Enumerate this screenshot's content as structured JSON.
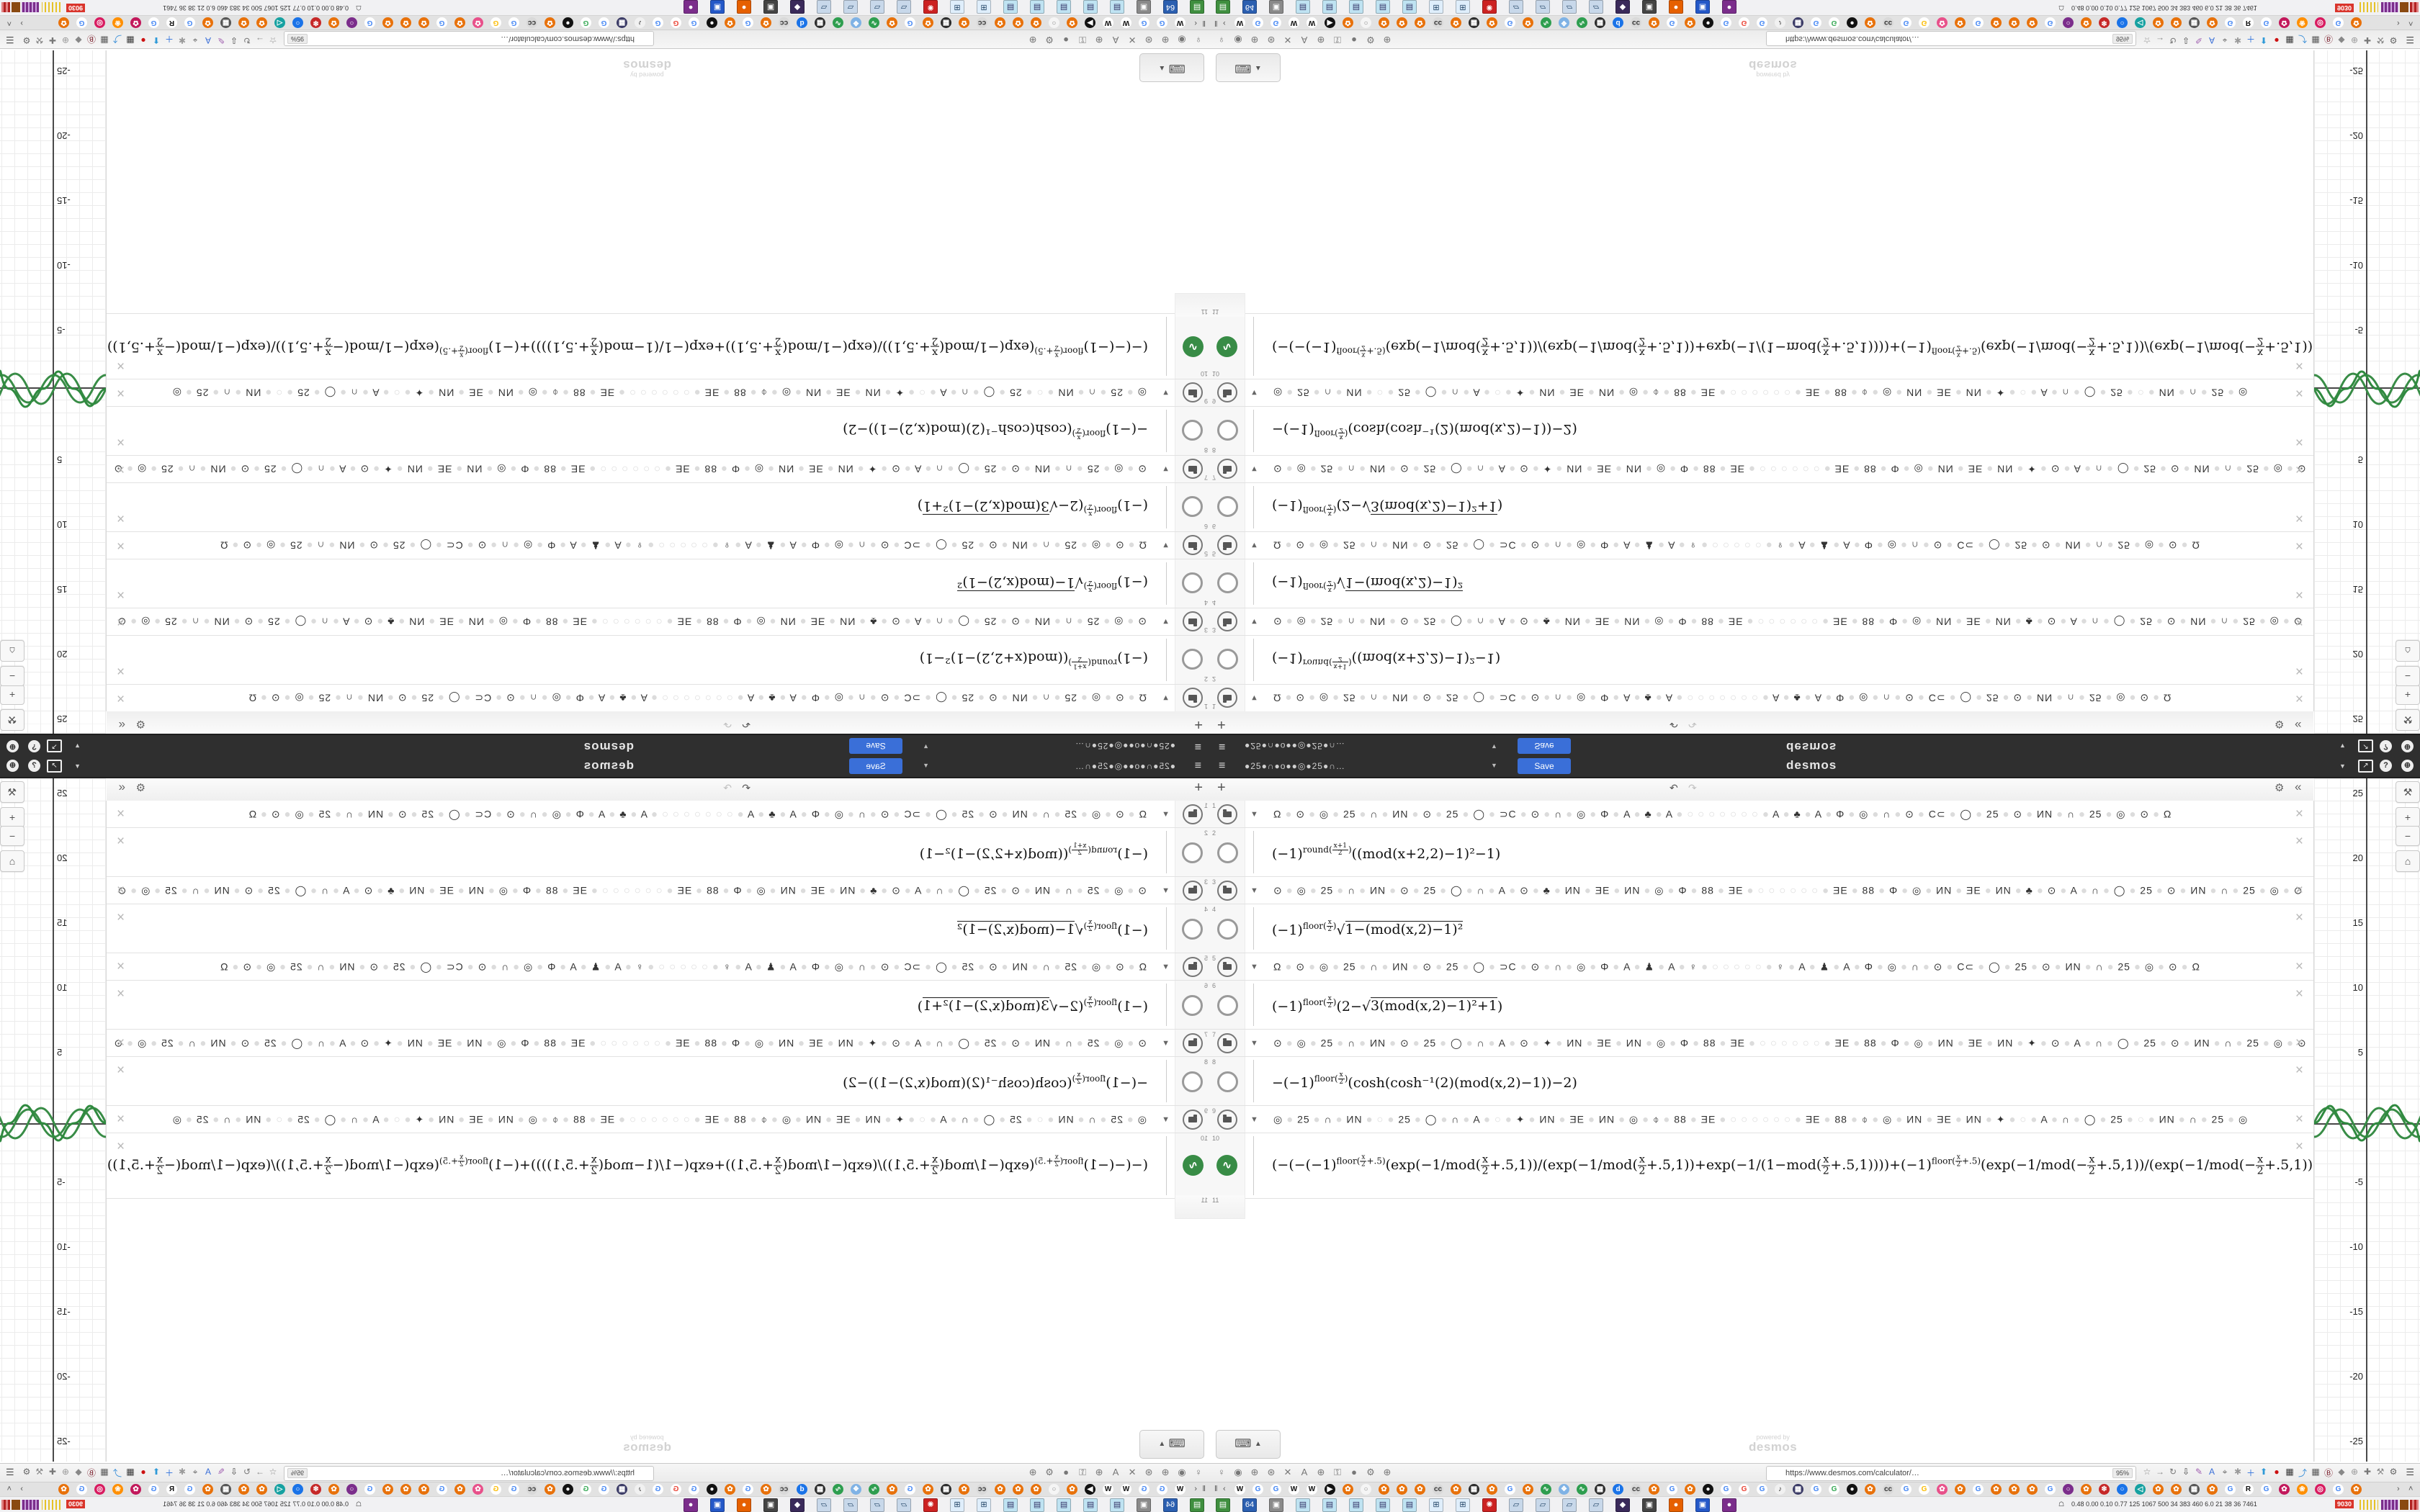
{
  "colors": {
    "accent_blue": "#3a6fd8",
    "curve_green": "#388c46",
    "alert_red": "#d9342b",
    "header_dark": "#2f2f2f"
  },
  "header": {
    "menu_icon": "≡",
    "title": "●25●∩●o●●◎●25●∩…",
    "title_caret": "▼",
    "save_label": "Save",
    "wordmark": "desmos",
    "account_caret": "▼",
    "share_icon": "↗",
    "help_icon": "?",
    "globe_icon": "⊕"
  },
  "expressions_toolbar": {
    "add": "+",
    "undo": "↶",
    "redo": "↷",
    "gear": "⚙",
    "collapse": "«"
  },
  "expressions": {
    "next_index": "11",
    "rows": [
      {
        "type": "folder",
        "index": "1",
        "arrow": "▼",
        "emoji": "Ω ● ⊙ ● ◎ ● 25 ● ∩ ● ИN ● ⊙ ● 25 ● ◯ ● ⊃C ● ⊙ ● ∩ ● ◎ ● Φ ● A ● ♣ ● A ● ○ ○ ○ ○ ○ ○ ○ ● A ● ♣ ● A ● Φ ● ◎ ● ∩ ● ⊙ ● C⊂ ● ◯ ● 25 ● ⊙ ● ИN ● ∩ ● 25 ● ◎ ● ⊙ ● Ω"
      },
      {
        "type": "math",
        "index": "2",
        "pre": "",
        "base": "(−1)",
        "sup": "round({x+1|2})",
        "rest": "((mod(x+2,2)−1)²−1)"
      },
      {
        "type": "folder",
        "index": "3",
        "arrow": "▼",
        "emoji": "⊙ ● ◎ ● 25 ● ∩ ● ИN ● ⊙ ● 25 ● ◯ ● ∩ ● A ● ⊙ ● ♣ ● ИN ● ƎE ● ИN ● ◎ ● Φ ● 88 ● ƎE ● ○ ○ ○ ○ ○ ○ ● ƎE ● 88 ● Φ ● ◎ ● ИN ● ƎE ● ИN ● ♣ ● ⊙ ● A ● ∩ ● ◯ ● 25 ● ⊙ ● ИN ● ∩ ● 25 ● ◎ ● ⊙"
      },
      {
        "type": "math",
        "index": "4",
        "pre": "",
        "base": "(−1)",
        "sup": "floor({x|2})",
        "rest": "√{1−(mod(x,2)−1)²}"
      },
      {
        "type": "folder",
        "index": "5",
        "arrow": "▼",
        "emoji": "Ω ● ⊙ ● ◎ ● 25 ● ∩ ● ИN ● ⊙ ● 25 ● ◯ ● ⊃C ● ⊙ ● ∩ ● ◎ ● Φ ● A ● ♟ ● A ● ♀ ● ○ ○ ○ ○ ○ ● ♀ ● A ● ♟ ● A ● Φ ● ◎ ● ∩ ● ⊙ ● C⊂ ● ◯ ● 25 ● ⊙ ● ИN ● ∩ ● 25 ● ◎ ● ⊙ ● Ω"
      },
      {
        "type": "math",
        "index": "6",
        "pre": "",
        "base": "(−1)",
        "sup": "floor({x|2})",
        "rest": "(2−√{3(mod(x,2)−1)²+1})"
      },
      {
        "type": "folder",
        "index": "7",
        "arrow": "▼",
        "emoji": "⊙ ● ◎ ● 25 ● ∩ ● ИN ● ⊙ ● 25 ● ◯ ● ∩ ● A ● ⊙ ● ✦ ● ИN ● ƎE ● ИN ● ◎ ● Φ ● 88 ● ƎE ● ○ ○ ○ ○ ○ ○ ● ƎE ● 88 ● Φ ● ◎ ● ИN ● ƎE ● ИN ● ✦ ● ⊙ ● A ● ∩ ● ◯ ● 25 ● ⊙ ● ИN ● ∩ ● 25 ● ◎ ● ⊙"
      },
      {
        "type": "math",
        "index": "8",
        "pre": "−",
        "base": "(−1)",
        "sup": "floor({x|2})",
        "rest": "(cosh(cosh⁻¹(2)(mod(x,2)−1))−2)"
      },
      {
        "type": "folder",
        "index": "9",
        "arrow": "▼",
        "emoji": "◎ ● 25 ● ∩ ● ИN ● ○ ● 25 ● ◯ ● ∩ ● A ● ○ ● ✦ ● ИN ● ƎE ● ИN ● ◎ ● ⌽ ● 88 ● ƎE ● ○ ○ ○ ○ ○ ○ ● ƎE ● 88 ● ⌽ ● ◎ ● ИN ● ƎE ● ИN ● ✦ ● ○ ● A ● ∩ ● ◯ ● 25 ● ○ ● ИN ● ∩ ● 25 ● ◎"
      },
      {
        "type": "math",
        "index": "10",
        "green": true,
        "icon": "∿",
        "pre": "(−(−",
        "base": "(−1)",
        "sup": "floor({x|2}+.5)",
        "rest": "(exp(−1/mod({x|2}+.5,1))/(exp(−1/mod({x|2}+.5,1))+exp(−1/(1−mod({x|2}+.5,1))))+(−1)^{floor({x|2}+.5)}(exp(−1/mod(−{x|2}+.5,1))/(exp(−1/mod(−{x|2}+.5,1))+exp(−1/(1−mod(−{x|2}+.5,1))))))"
      }
    ]
  },
  "keyboard": {
    "icon": "⌨",
    "caret": "▲"
  },
  "watermark": {
    "line1": "powered by",
    "line2": "desmos"
  },
  "graph": {
    "y_labels": [
      {
        "t": "25",
        "y": 13
      },
      {
        "t": "20",
        "y": 103
      },
      {
        "t": "15",
        "y": 193
      },
      {
        "t": "10",
        "y": 283
      },
      {
        "t": "5",
        "y": 373
      },
      {
        "t": "-5",
        "y": 553
      },
      {
        "t": "-10",
        "y": 643
      },
      {
        "t": "-15",
        "y": 733
      },
      {
        "t": "-20",
        "y": 823
      },
      {
        "t": "-25",
        "y": 913
      }
    ],
    "controls": [
      {
        "t": "⚒",
        "y": 4,
        "h": 28
      },
      {
        "t": "+",
        "y": 40,
        "h": 26
      },
      {
        "t": "−",
        "y": 66,
        "h": 26
      },
      {
        "t": "⌂",
        "y": 100,
        "h": 28
      }
    ]
  },
  "chart_data": {
    "type": "line",
    "title": "",
    "xlabel": "x",
    "ylabel": "y",
    "x_visible_range": [
      -4,
      4.1
    ],
    "y_visible_range": [
      -26.6,
      26.1
    ],
    "grid": true,
    "legend_position": "none",
    "series": [
      {
        "name": "(-1)^round((x+1)/2)((mod(x+2,2)-1)^2-1)",
        "color": "#388c46",
        "description": "triangle-ish parabola wave, period 4, amplitude 1"
      },
      {
        "name": "(-1)^floor(x/2)sqrt(1-(mod(x,2)-1)^2)",
        "color": "#388c46",
        "description": "semicircle wave, period 4, amplitude 1"
      },
      {
        "name": "(-1)^floor(x/2)(2-sqrt(3(mod(x,2)-1)^2+1))",
        "color": "#388c46",
        "description": "hyperbola wave, period 4, amplitude 1"
      },
      {
        "name": "-(-1)^floor(x/2)(cosh(cosh^-1(2)(mod(x,2)-1))-2)",
        "color": "#388c46",
        "description": "cosh wave, period 4, amplitude 1"
      },
      {
        "name": "-(-1)^floor(x/2+.5)(exp(-1/mod(x/2+.5,1))/(exp(-1/mod(x/2+.5,1))+exp(-1/(1-mod(x/2+.5,1))))+...)",
        "color": "#388c46",
        "description": "smooth bump wave, period 4, amplitude ~1.3"
      }
    ]
  },
  "browser": {
    "ext_icons_left": [
      "♀",
      "◉",
      "⊕",
      "⊛",
      "✕",
      "A",
      "⊕",
      "⚿",
      "●",
      "⚙",
      "⊕"
    ],
    "url": "https://www.desmos.com/calculator/…",
    "zoom_level": "95%",
    "ext_icons_right": [
      {
        "t": "☆",
        "c": "#888"
      },
      {
        "t": "→",
        "c": "#888"
      },
      {
        "t": "↻",
        "c": "#777"
      },
      {
        "t": "⇩",
        "c": "#444"
      },
      {
        "t": "✎",
        "c": "#a05fb0"
      },
      {
        "t": "A",
        "c": "#3a6fd8"
      },
      {
        "t": "⌖",
        "c": "#666"
      },
      {
        "t": "✱",
        "c": "#9a9a9a"
      },
      {
        "t": "＋",
        "c": "#2f72dc"
      },
      {
        "t": "⬆",
        "c": "#2f9ad8"
      },
      {
        "t": "●",
        "c": "#cc1111"
      },
      {
        "t": "▦",
        "c": "#333"
      },
      {
        "t": "⤴",
        "c": "#3a8fd8"
      },
      {
        "t": "▦",
        "c": "#555"
      },
      {
        "t": "Ⓑ",
        "c": "#7a1f2b"
      },
      {
        "t": "◆",
        "c": "#888"
      },
      {
        "t": "⊕",
        "c": "#999"
      },
      {
        "t": "✚",
        "c": "#777"
      },
      {
        "t": "⚒",
        "c": "#888"
      },
      {
        "t": "⚙",
        "c": "#666"
      }
    ],
    "menu_icon": "☰",
    "tabs": {
      "pin": "‖",
      "scroll_left": "‹",
      "scroll_right": "›",
      "list_up": "˄",
      "favicons": [
        {
          "t": "W",
          "bg": "#fff",
          "fg": "#111"
        },
        {
          "t": "G",
          "bg": "#fff",
          "fg": "#4285f4"
        },
        {
          "t": "G",
          "bg": "#fff",
          "fg": "#4285f4"
        },
        {
          "t": "W",
          "bg": "#fff",
          "fg": "#111"
        },
        {
          "t": "W",
          "bg": "#fff",
          "fg": "#111"
        },
        {
          "t": "▶",
          "bg": "#111",
          "fg": "#fff"
        },
        {
          "t": "✿",
          "bg": "#e8710a",
          "fg": "#fff"
        },
        {
          "t": "○",
          "bg": "#f5f5f5",
          "fg": "#888"
        },
        {
          "t": "✿",
          "bg": "#e8710a",
          "fg": "#fff"
        },
        {
          "t": "✿",
          "bg": "#e8710a",
          "fg": "#fff"
        },
        {
          "t": "✿",
          "bg": "#e8710a",
          "fg": "#fff"
        },
        {
          "t": "cc",
          "bg": "#d9d9d9",
          "fg": "#333"
        },
        {
          "t": "✿",
          "bg": "#e8710a",
          "fg": "#fff"
        },
        {
          "t": "▦",
          "bg": "#2b2b2b",
          "fg": "#fff"
        },
        {
          "t": "✿",
          "bg": "#e8710a",
          "fg": "#fff"
        },
        {
          "t": "G",
          "bg": "#fff",
          "fg": "#4285f4"
        },
        {
          "t": "✿",
          "bg": "#e8710a",
          "fg": "#fff"
        },
        {
          "t": "∿",
          "bg": "#2e9e4f",
          "fg": "#fff"
        },
        {
          "t": "❖",
          "bg": "#7fb2e5",
          "fg": "#fff"
        },
        {
          "t": "∿",
          "bg": "#2e9e4f",
          "fg": "#fff"
        },
        {
          "t": "▦",
          "bg": "#2b2b2b",
          "fg": "#fff"
        },
        {
          "t": "d",
          "bg": "#1a73e8",
          "fg": "#fff"
        },
        {
          "t": "cc",
          "bg": "#d9d9d9",
          "fg": "#333"
        },
        {
          "t": "✿",
          "bg": "#e8710a",
          "fg": "#fff"
        },
        {
          "t": "G",
          "bg": "#fff",
          "fg": "#4285f4"
        },
        {
          "t": "✿",
          "bg": "#e8710a",
          "fg": "#fff"
        },
        {
          "t": "●",
          "bg": "#111",
          "fg": "#fff"
        },
        {
          "t": "G",
          "bg": "#fff",
          "fg": "#4285f4"
        },
        {
          "t": "G",
          "bg": "#fff",
          "fg": "#ea4335"
        },
        {
          "t": "G",
          "bg": "#fff",
          "fg": "#4285f4"
        },
        {
          "t": "♪",
          "bg": "#f1f1f1",
          "fg": "#333"
        },
        {
          "t": "▦",
          "bg": "#3b3b66",
          "fg": "#fff"
        },
        {
          "t": "G",
          "bg": "#fff",
          "fg": "#4285f4"
        },
        {
          "t": "G",
          "bg": "#fff",
          "fg": "#34a853"
        },
        {
          "t": "●",
          "bg": "#111",
          "fg": "#fff"
        },
        {
          "t": "✿",
          "bg": "#e8710a",
          "fg": "#fff"
        },
        {
          "t": "cc",
          "bg": "#d9d9d9",
          "fg": "#333"
        },
        {
          "t": "G",
          "bg": "#fff",
          "fg": "#4285f4"
        },
        {
          "t": "G",
          "bg": "#fff",
          "fg": "#fbbc05"
        },
        {
          "t": "✿",
          "bg": "#e8508a",
          "fg": "#fff"
        },
        {
          "t": "✿",
          "bg": "#e8710a",
          "fg": "#fff"
        },
        {
          "t": "G",
          "bg": "#fff",
          "fg": "#4285f4"
        },
        {
          "t": "✿",
          "bg": "#e8710a",
          "fg": "#fff"
        },
        {
          "t": "✿",
          "bg": "#e8710a",
          "fg": "#fff"
        },
        {
          "t": "✿",
          "bg": "#e8710a",
          "fg": "#fff"
        },
        {
          "t": "G",
          "bg": "#fff",
          "fg": "#4285f4"
        },
        {
          "t": "○",
          "bg": "#7b2d8b",
          "fg": "#fff"
        },
        {
          "t": "✿",
          "bg": "#e8710a",
          "fg": "#fff"
        },
        {
          "t": "❄",
          "bg": "#c62828",
          "fg": "#fff"
        },
        {
          "t": "○",
          "bg": "#1a73e8",
          "fg": "#fff"
        },
        {
          "t": "◁",
          "bg": "#16a1a1",
          "fg": "#fff"
        },
        {
          "t": "✿",
          "bg": "#e8710a",
          "fg": "#fff"
        },
        {
          "t": "✿",
          "bg": "#e8710a",
          "fg": "#fff"
        },
        {
          "t": "▦",
          "bg": "#555",
          "fg": "#fff"
        },
        {
          "t": "✿",
          "bg": "#e8710a",
          "fg": "#fff"
        },
        {
          "t": "G",
          "bg": "#fff",
          "fg": "#4285f4"
        },
        {
          "t": "R",
          "bg": "#fff",
          "fg": "#111"
        },
        {
          "t": "G",
          "bg": "#fff",
          "fg": "#4285f4"
        },
        {
          "t": "✿",
          "bg": "#c2185b",
          "fg": "#fff"
        },
        {
          "t": "❀",
          "bg": "#ff8f00",
          "fg": "#fff"
        },
        {
          "t": "◎",
          "bg": "#d81b60",
          "fg": "#fff"
        },
        {
          "t": "G",
          "bg": "#fff",
          "fg": "#4285f4"
        },
        {
          "t": "✿",
          "bg": "#e8710a",
          "fg": "#fff"
        }
      ]
    },
    "taskbar": {
      "apps": [
        {
          "t": "▤",
          "bg": "#3f8f3f"
        },
        {
          "t": "64",
          "bg": "#2b5fb0"
        },
        {
          "t": "▣",
          "bg": "#8a8a8a"
        },
        {
          "t": "▤",
          "bg": "#bfe3f2",
          "fg": "#336"
        },
        {
          "t": "▤",
          "bg": "#bfe3f2",
          "fg": "#336"
        },
        {
          "t": "▤",
          "bg": "#bfe3f2",
          "fg": "#336"
        },
        {
          "t": "▤",
          "bg": "#bfe3f2",
          "fg": "#336"
        },
        {
          "t": "▤",
          "bg": "#bfe3f2",
          "fg": "#336"
        },
        {
          "t": "⊞",
          "bg": "#dfeefb",
          "fg": "#246"
        },
        {
          "t": "⊞",
          "bg": "#dfeefb",
          "fg": "#246"
        },
        {
          "t": "✺",
          "bg": "#cc2222"
        },
        {
          "t": "▱",
          "bg": "#c8d8ea",
          "fg": "#246"
        },
        {
          "t": "▱",
          "bg": "#c8d8ea",
          "fg": "#246"
        },
        {
          "t": "▱",
          "bg": "#c8d8ea",
          "fg": "#246"
        },
        {
          "t": "▱",
          "bg": "#c8d8ea",
          "fg": "#246"
        },
        {
          "t": "◆",
          "bg": "#3a2a5a"
        },
        {
          "t": "▣",
          "bg": "#444"
        },
        {
          "t": "●",
          "bg": "#e66000"
        },
        {
          "t": "▣",
          "bg": "#2458c8"
        },
        {
          "t": "●",
          "bg": "#7b2d8b"
        }
      ],
      "sysmon": {
        "arrow": "☖",
        "values": [
          "0.48",
          "0.00",
          "0.10",
          "0.77",
          "125",
          "1067",
          "500",
          "34",
          "383",
          "460",
          "6.0",
          "21",
          "38",
          "36",
          "7461"
        ],
        "alert": "9030"
      }
    }
  }
}
